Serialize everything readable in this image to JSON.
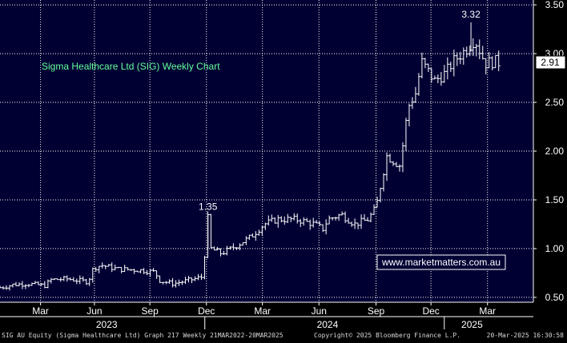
{
  "chart_data": {
    "type": "ohlc",
    "title": "Sigma Healthcare Ltd (SIG) Weekly Chart",
    "watermark": "www.marketmatters.com.au",
    "y_ticks": [
      "0.50",
      "1.00",
      "1.50",
      "2.00",
      "2.50",
      "3.00",
      "3.50"
    ],
    "ylim": [
      0.45,
      3.55
    ],
    "grid": true,
    "month_labels": [
      {
        "label": "Mar",
        "t": 0.076
      },
      {
        "label": "Jun",
        "t": 0.177
      },
      {
        "label": "Sep",
        "t": 0.281
      },
      {
        "label": "Dec",
        "t": 0.387
      },
      {
        "label": "Mar",
        "t": 0.492
      },
      {
        "label": "Jun",
        "t": 0.598
      },
      {
        "label": "Sep",
        "t": 0.705
      },
      {
        "label": "Dec",
        "t": 0.808
      },
      {
        "label": "Mar",
        "t": 0.914
      }
    ],
    "year_labels": [
      {
        "label": "2023",
        "t": 0.2
      },
      {
        "label": "2024",
        "t": 0.614
      },
      {
        "label": "2025",
        "t": 0.885
      }
    ],
    "year_dividers": [
      0.384,
      0.833
    ],
    "annotations": [
      {
        "text": "1.35",
        "t": 0.39,
        "price": 1.35
      },
      {
        "text": "3.32",
        "t": 0.883,
        "price": 3.32
      }
    ],
    "last_price": {
      "label": "2.91",
      "value": 2.91,
      "color": "#ffffff"
    },
    "colors": {
      "background": "#000033",
      "grid": "#ffffff",
      "bars": "#ffffff",
      "title": "#66ff99",
      "watermark_border": "#ffffff",
      "axis_text": "#ffffff"
    },
    "anchors": [
      [
        0.0,
        0.6
      ],
      [
        0.025,
        0.63
      ],
      [
        0.05,
        0.64
      ],
      [
        0.085,
        0.62
      ],
      [
        0.095,
        0.68
      ],
      [
        0.125,
        0.69
      ],
      [
        0.165,
        0.66
      ],
      [
        0.175,
        0.8
      ],
      [
        0.19,
        0.83
      ],
      [
        0.22,
        0.79
      ],
      [
        0.26,
        0.78
      ],
      [
        0.29,
        0.76
      ],
      [
        0.3,
        0.67
      ],
      [
        0.325,
        0.64
      ],
      [
        0.35,
        0.67
      ],
      [
        0.38,
        0.71
      ],
      [
        0.39,
        1.34
      ],
      [
        0.395,
        1.0
      ],
      [
        0.415,
        0.95
      ],
      [
        0.44,
        1.02
      ],
      [
        0.47,
        1.12
      ],
      [
        0.495,
        1.25
      ],
      [
        0.52,
        1.3
      ],
      [
        0.555,
        1.3
      ],
      [
        0.59,
        1.25
      ],
      [
        0.605,
        1.2
      ],
      [
        0.615,
        1.3
      ],
      [
        0.64,
        1.35
      ],
      [
        0.665,
        1.25
      ],
      [
        0.69,
        1.3
      ],
      [
        0.705,
        1.42
      ],
      [
        0.725,
        1.95
      ],
      [
        0.75,
        1.85
      ],
      [
        0.765,
        2.45
      ],
      [
        0.78,
        2.6
      ],
      [
        0.79,
        2.92
      ],
      [
        0.815,
        2.72
      ],
      [
        0.835,
        2.8
      ],
      [
        0.85,
        2.92
      ],
      [
        0.875,
        3.05
      ],
      [
        0.89,
        3.15
      ],
      [
        0.91,
        2.9
      ],
      [
        0.925,
        2.92
      ],
      [
        0.935,
        2.91
      ]
    ]
  },
  "footer": {
    "left": "SIG AU Equity (Sigma Healthcare Ltd) Graph 217  Weekly 21MAR2022-20MAR2025",
    "center": "Copyright© 2025 Bloomberg Finance L.P.",
    "right": "20-Mar-2025 16:30:58"
  }
}
